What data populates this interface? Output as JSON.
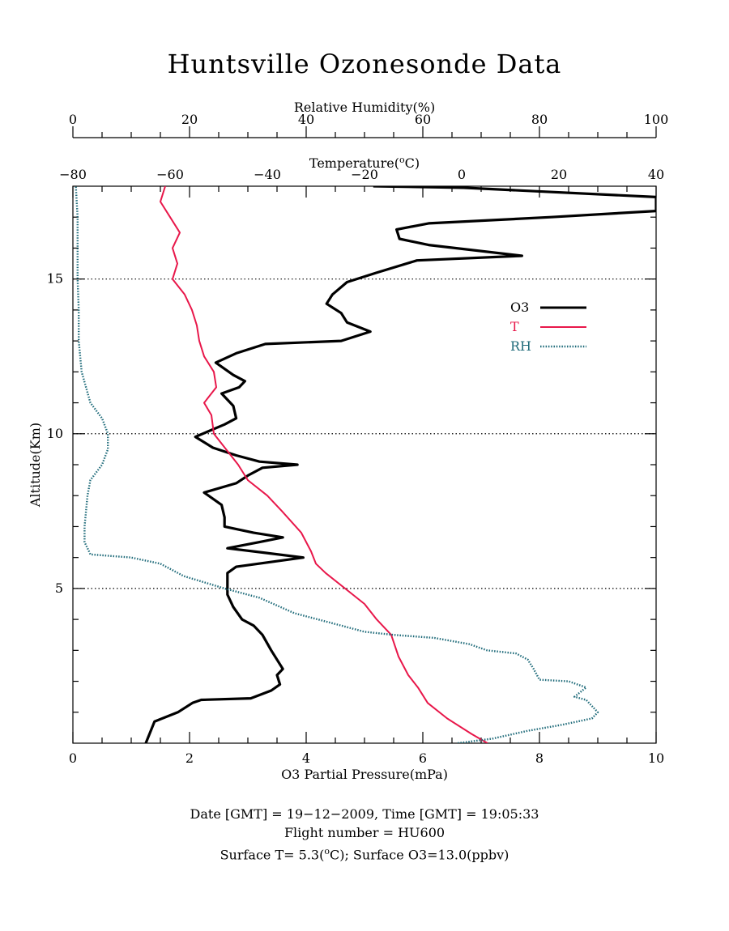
{
  "chart_data": {
    "type": "line",
    "title": "Huntsville Ozonesonde Data",
    "axes": {
      "rh": {
        "label": "Relative Humidity(%)",
        "range": [
          0,
          100
        ],
        "ticks": [
          "0",
          "20",
          "40",
          "60",
          "80",
          "100"
        ]
      },
      "temp": {
        "label": "Temperature(°C)",
        "label_main": "Temperature(",
        "label_sup": "o",
        "label_end": "C)",
        "range": [
          -80,
          40
        ],
        "ticks": [
          "−80",
          "−60",
          "−40",
          "−20",
          "0",
          "20",
          "40"
        ]
      },
      "o3": {
        "label": "O3 Partial Pressure(mPa)",
        "range": [
          0,
          10
        ],
        "ticks": [
          "0",
          "2",
          "4",
          "6",
          "8",
          "10"
        ]
      },
      "alt": {
        "label": "Altitude(Km)",
        "range": [
          0,
          18
        ],
        "ticks": [
          "5",
          "10",
          "15"
        ],
        "reference_lines": [
          5,
          10,
          15
        ]
      }
    },
    "legend": [
      {
        "name": "O3",
        "color": "#000000",
        "style": "solid"
      },
      {
        "name": "T",
        "color": "#e8174a",
        "style": "line-with-dots"
      },
      {
        "name": "RH",
        "color": "#1f6b7a",
        "style": "dotted"
      }
    ],
    "legend_position": "upper-right",
    "series": [
      {
        "name": "O3",
        "axis": "o3",
        "unit": "mPa",
        "color": "#000000",
        "points": [
          [
            1.25,
            0
          ],
          [
            1.4,
            0.7
          ],
          [
            1.8,
            1.0
          ],
          [
            2.05,
            1.3
          ],
          [
            2.2,
            1.4
          ],
          [
            3.05,
            1.45
          ],
          [
            3.4,
            1.7
          ],
          [
            3.55,
            1.9
          ],
          [
            3.5,
            2.2
          ],
          [
            3.6,
            2.4
          ],
          [
            3.5,
            2.7
          ],
          [
            3.4,
            3.0
          ],
          [
            3.25,
            3.5
          ],
          [
            3.1,
            3.8
          ],
          [
            2.9,
            4.0
          ],
          [
            2.75,
            4.4
          ],
          [
            2.65,
            4.8
          ],
          [
            2.65,
            5.5
          ],
          [
            2.8,
            5.7
          ],
          [
            3.95,
            6.0
          ],
          [
            3.3,
            6.15
          ],
          [
            2.65,
            6.3
          ],
          [
            3.2,
            6.5
          ],
          [
            3.6,
            6.65
          ],
          [
            3.1,
            6.8
          ],
          [
            2.6,
            7.0
          ],
          [
            2.6,
            7.3
          ],
          [
            2.55,
            7.7
          ],
          [
            2.25,
            8.1
          ],
          [
            2.8,
            8.4
          ],
          [
            3.0,
            8.65
          ],
          [
            3.25,
            8.9
          ],
          [
            3.85,
            9.0
          ],
          [
            3.2,
            9.1
          ],
          [
            2.8,
            9.3
          ],
          [
            2.4,
            9.55
          ],
          [
            2.1,
            9.9
          ],
          [
            2.6,
            10.3
          ],
          [
            2.8,
            10.5
          ],
          [
            2.75,
            10.9
          ],
          [
            2.55,
            11.3
          ],
          [
            2.85,
            11.5
          ],
          [
            2.95,
            11.7
          ],
          [
            2.75,
            11.9
          ],
          [
            2.45,
            12.3
          ],
          [
            2.8,
            12.6
          ],
          [
            3.3,
            12.9
          ],
          [
            4.6,
            13.0
          ],
          [
            5.1,
            13.3
          ],
          [
            4.7,
            13.6
          ],
          [
            4.6,
            13.9
          ],
          [
            4.35,
            14.2
          ],
          [
            4.45,
            14.5
          ],
          [
            4.7,
            14.9
          ],
          [
            5.2,
            15.2
          ],
          [
            5.9,
            15.6
          ],
          [
            7.7,
            15.75
          ],
          [
            6.1,
            16.1
          ],
          [
            5.6,
            16.3
          ],
          [
            5.55,
            16.6
          ],
          [
            6.1,
            16.8
          ],
          [
            8.2,
            17.0
          ],
          [
            10.0,
            17.2
          ],
          [
            10.0,
            17.65
          ],
          [
            6.7,
            17.95
          ],
          [
            5.15,
            18.0
          ]
        ]
      },
      {
        "name": "T",
        "axis": "temp",
        "unit": "°C",
        "color": "#e8174a",
        "points": [
          [
            5.3,
            0
          ],
          [
            2.0,
            0.3
          ],
          [
            -3.0,
            0.8
          ],
          [
            -7.0,
            1.3
          ],
          [
            -9.0,
            1.8
          ],
          [
            -11.0,
            2.2
          ],
          [
            -13.0,
            2.8
          ],
          [
            -14.5,
            3.5
          ],
          [
            -17.5,
            4.0
          ],
          [
            -20.0,
            4.5
          ],
          [
            -24.0,
            5.0
          ],
          [
            -28.0,
            5.5
          ],
          [
            -30.0,
            5.8
          ],
          [
            -31.0,
            6.2
          ],
          [
            -33.0,
            6.8
          ],
          [
            -37.0,
            7.5
          ],
          [
            -40.0,
            8.0
          ],
          [
            -44.0,
            8.5
          ],
          [
            -46.0,
            9.0
          ],
          [
            -48.5,
            9.5
          ],
          [
            -51.0,
            10.0
          ],
          [
            -51.5,
            10.6
          ],
          [
            -53.0,
            11.0
          ],
          [
            -50.5,
            11.5
          ],
          [
            -51.0,
            12.0
          ],
          [
            -53.0,
            12.5
          ],
          [
            -54.0,
            13.0
          ],
          [
            -54.5,
            13.5
          ],
          [
            -55.5,
            14.0
          ],
          [
            -57.0,
            14.5
          ],
          [
            -59.5,
            15.0
          ],
          [
            -58.5,
            15.5
          ],
          [
            -59.5,
            16.0
          ],
          [
            -58.0,
            16.5
          ],
          [
            -60.0,
            17.0
          ],
          [
            -62.0,
            17.5
          ],
          [
            -61.0,
            18.0
          ]
        ]
      },
      {
        "name": "RH",
        "axis": "rh",
        "unit": "%",
        "color": "#1f6b7a",
        "points": [
          [
            66.0,
            0
          ],
          [
            72.0,
            0.15
          ],
          [
            78.0,
            0.4
          ],
          [
            84.0,
            0.6
          ],
          [
            89.0,
            0.8
          ],
          [
            90.0,
            1.0
          ],
          [
            88.0,
            1.4
          ],
          [
            86.0,
            1.5
          ],
          [
            88.0,
            1.8
          ],
          [
            85.0,
            2.0
          ],
          [
            80.0,
            2.05
          ],
          [
            79.0,
            2.4
          ],
          [
            78.0,
            2.7
          ],
          [
            76.0,
            2.9
          ],
          [
            71.0,
            3.0
          ],
          [
            68.0,
            3.2
          ],
          [
            62.0,
            3.4
          ],
          [
            55.0,
            3.5
          ],
          [
            50.0,
            3.6
          ],
          [
            44.0,
            3.9
          ],
          [
            38.0,
            4.2
          ],
          [
            32.0,
            4.7
          ],
          [
            26.0,
            5.0
          ],
          [
            19.0,
            5.4
          ],
          [
            15.0,
            5.8
          ],
          [
            10.0,
            6.0
          ],
          [
            3.0,
            6.1
          ],
          [
            2.0,
            6.5
          ],
          [
            2.0,
            7.0
          ],
          [
            2.5,
            8.0
          ],
          [
            3.0,
            8.5
          ],
          [
            5.0,
            9.0
          ],
          [
            6.0,
            9.5
          ],
          [
            6.0,
            10.0
          ],
          [
            5.0,
            10.5
          ],
          [
            3.0,
            11.0
          ],
          [
            1.5,
            12.0
          ],
          [
            1.0,
            13.0
          ],
          [
            1.0,
            14.0
          ],
          [
            0.8,
            15.0
          ],
          [
            0.8,
            16.0
          ],
          [
            0.8,
            17.0
          ],
          [
            0.5,
            18.0
          ]
        ]
      }
    ]
  },
  "footer": {
    "line1": "Date [GMT] = 19−12−2009,  Time [GMT] = 19:05:33",
    "line2": "Flight number = HU600",
    "line3_a": "Surface T= 5.3(",
    "line3_sup": "o",
    "line3_b": "C); Surface O3=13.0(ppbv)"
  }
}
